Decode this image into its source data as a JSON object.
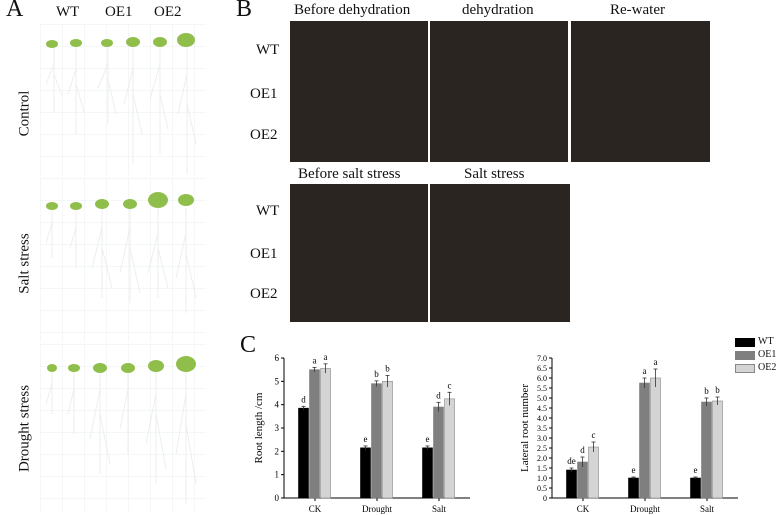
{
  "panels": {
    "A": {
      "letter": "A",
      "columns": [
        "WT",
        "OE1",
        "OE2"
      ],
      "rows": [
        "Control",
        "Salt stress",
        "Drought stress"
      ]
    },
    "B": {
      "letter": "B",
      "top_titles": [
        "Before dehydration",
        "dehydration",
        "Re-water"
      ],
      "bottom_titles": [
        "Before salt stress",
        "Salt stress"
      ],
      "genotypes": [
        "WT",
        "OE1",
        "OE2"
      ],
      "genotypes_bottom": [
        "WT",
        "OE1",
        "OE2"
      ]
    },
    "C": {
      "letter": "C"
    }
  },
  "legend": [
    "WT",
    "OE1",
    "OE2"
  ],
  "colors": {
    "WT": "#000000",
    "OE1": "#7f7f7f",
    "OE2": "#d4d4d4"
  },
  "chart_data": [
    {
      "type": "bar",
      "ylabel": "Root length /cm",
      "categories": [
        "CK",
        "Drought",
        "Salt"
      ],
      "ylim": [
        0,
        6
      ],
      "yticks": [
        "0",
        "1",
        "2",
        "3",
        "4",
        "5",
        "6"
      ],
      "series": [
        {
          "name": "WT",
          "values": [
            3.85,
            2.15,
            2.15
          ],
          "errors": [
            0.08,
            0.08,
            0.08
          ],
          "letters": [
            "d",
            "e",
            "e"
          ]
        },
        {
          "name": "OE1",
          "values": [
            5.5,
            4.9,
            3.9
          ],
          "errors": [
            0.1,
            0.12,
            0.2
          ],
          "letters": [
            "a",
            "b",
            "d"
          ]
        },
        {
          "name": "OE2",
          "values": [
            5.55,
            5.0,
            4.25
          ],
          "errors": [
            0.2,
            0.25,
            0.28
          ],
          "letters": [
            "a",
            "b",
            "c"
          ]
        }
      ]
    },
    {
      "type": "bar",
      "ylabel": "Lateral root number",
      "categories": [
        "CK",
        "Drought",
        "Salt"
      ],
      "ylim": [
        0,
        7
      ],
      "yticks": [
        "0",
        "0.5",
        "1.0",
        "1.5",
        "2.0",
        "2.5",
        "3.0",
        "3.5",
        "4.0",
        "4.5",
        "5.0",
        "5.5",
        "6.0",
        "6.5",
        "7.0"
      ],
      "series": [
        {
          "name": "WT",
          "values": [
            1.4,
            1.0,
            1.0
          ],
          "errors": [
            0.1,
            0.05,
            0.05
          ],
          "letters": [
            "de",
            "e",
            "e"
          ]
        },
        {
          "name": "OE1",
          "values": [
            1.8,
            5.75,
            4.8
          ],
          "errors": [
            0.25,
            0.25,
            0.2
          ],
          "letters": [
            "d",
            "a",
            "b"
          ]
        },
        {
          "name": "OE2",
          "values": [
            2.55,
            6.0,
            4.85
          ],
          "errors": [
            0.25,
            0.45,
            0.2
          ],
          "letters": [
            "c",
            "a",
            "b"
          ]
        }
      ]
    }
  ]
}
